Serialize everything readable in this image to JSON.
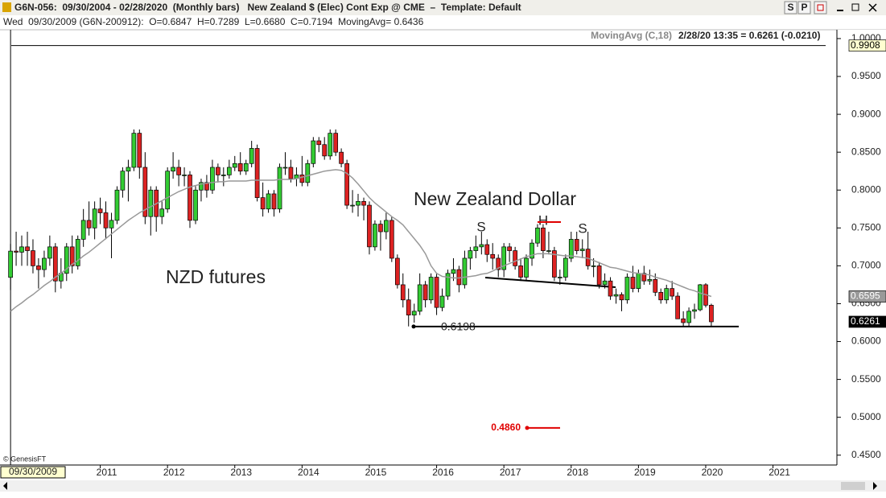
{
  "window": {
    "title": "G6N-056:  09/30/2004 - 02/28/2020  (Monthly bars)   New Zealand $ (Elec) Cont Exp @ CME  –  Template: Default",
    "buttons": [
      "S",
      "P"
    ]
  },
  "info_bar": "Wed  09/30/2009 (G6N-200912):  O=0.6847  H=0.7289  L=0.6680  C=0.7194  MovingAvg= 0.6436",
  "copyright": "© GenesisFT",
  "chart_data": {
    "type": "candlestick",
    "last_quote": "2/28/20 13:35 = 0.6261 (-0.0210)",
    "annotations": [
      "New Zealand Dollar",
      "NZD futures",
      "S",
      "H",
      "S"
    ],
    "support": 0.6198,
    "target": {
      "value": 0.486,
      "label": "0.4860"
    },
    "crosshair": {
      "price": 0.9908,
      "date": "09/30/2009"
    },
    "up_color": "#33cc33",
    "down_color": "#dd2222",
    "grid": false,
    "xlim": [
      2009.51,
      2021.95
    ],
    "xticks": [
      2011,
      2012,
      2013,
      2014,
      2015,
      2016,
      2017,
      2018,
      2019,
      2020,
      2021
    ],
    "ylim": [
      0.437,
      1.001
    ],
    "yticks": [
      {
        "value": 1,
        "label": "1.0000"
      },
      {
        "value": 0.95,
        "label": "0.9500"
      },
      {
        "value": 0.9,
        "label": "0.9000"
      },
      {
        "value": 0.85,
        "label": "0.8500"
      },
      {
        "value": 0.8,
        "label": "0.8000"
      },
      {
        "value": 0.75,
        "label": "0.7500"
      },
      {
        "value": 0.7,
        "label": "0.7000"
      },
      {
        "value": 0.65,
        "label": "0.6500"
      },
      {
        "value": 0.6,
        "label": "0.6000"
      },
      {
        "value": 0.55,
        "label": "0.5500"
      },
      {
        "value": 0.5,
        "label": "0.5000"
      },
      {
        "value": 0.45,
        "label": "0.4500"
      }
    ],
    "x": [
      2009.667,
      2009.75,
      2009.833,
      2009.917,
      2010,
      2010.083,
      2010.167,
      2010.25,
      2010.333,
      2010.417,
      2010.5,
      2010.583,
      2010.667,
      2010.75,
      2010.833,
      2010.917,
      2011,
      2011.083,
      2011.167,
      2011.25,
      2011.333,
      2011.417,
      2011.5,
      2011.583,
      2011.667,
      2011.75,
      2011.833,
      2011.917,
      2012,
      2012.083,
      2012.167,
      2012.25,
      2012.333,
      2012.417,
      2012.5,
      2012.583,
      2012.667,
      2012.75,
      2012.833,
      2012.917,
      2013,
      2013.083,
      2013.167,
      2013.25,
      2013.333,
      2013.417,
      2013.5,
      2013.583,
      2013.667,
      2013.75,
      2013.833,
      2013.917,
      2014,
      2014.083,
      2014.167,
      2014.25,
      2014.333,
      2014.417,
      2014.5,
      2014.583,
      2014.667,
      2014.75,
      2014.833,
      2014.917,
      2015,
      2015.083,
      2015.167,
      2015.25,
      2015.333,
      2015.417,
      2015.5,
      2015.583,
      2015.667,
      2015.75,
      2015.833,
      2015.917,
      2016,
      2016.083,
      2016.167,
      2016.25,
      2016.333,
      2016.417,
      2016.5,
      2016.583,
      2016.667,
      2016.75,
      2016.833,
      2016.917,
      2017,
      2017.083,
      2017.167,
      2017.25,
      2017.333,
      2017.417,
      2017.5,
      2017.583,
      2017.667,
      2017.75,
      2017.833,
      2017.917,
      2018,
      2018.083,
      2018.167,
      2018.25,
      2018.333,
      2018.417,
      2018.5,
      2018.583,
      2018.667,
      2018.75,
      2018.833,
      2018.917,
      2019,
      2019.083,
      2019.167,
      2019.25,
      2019.333,
      2019.417,
      2019.5,
      2019.583,
      2019.667,
      2019.75,
      2019.833,
      2019.917,
      2020,
      2020.083
    ],
    "open": [
      0.6847,
      0.7194,
      0.718,
      0.725,
      0.72,
      0.7,
      0.695,
      0.71,
      0.725,
      0.68,
      0.69,
      0.725,
      0.7,
      0.735,
      0.76,
      0.75,
      0.775,
      0.77,
      0.75,
      0.76,
      0.8,
      0.825,
      0.83,
      0.875,
      0.83,
      0.765,
      0.8,
      0.765,
      0.775,
      0.825,
      0.83,
      0.82,
      0.82,
      0.76,
      0.8,
      0.81,
      0.8,
      0.83,
      0.82,
      0.82,
      0.83,
      0.835,
      0.825,
      0.835,
      0.855,
      0.79,
      0.775,
      0.795,
      0.775,
      0.83,
      0.83,
      0.815,
      0.82,
      0.81,
      0.835,
      0.865,
      0.86,
      0.845,
      0.875,
      0.85,
      0.835,
      0.78,
      0.78,
      0.785,
      0.78,
      0.725,
      0.755,
      0.745,
      0.76,
      0.71,
      0.675,
      0.655,
      0.635,
      0.64,
      0.675,
      0.655,
      0.685,
      0.645,
      0.66,
      0.69,
      0.695,
      0.675,
      0.71,
      0.72,
      0.725,
      0.728,
      0.715,
      0.71,
      0.695,
      0.725,
      0.72,
      0.7,
      0.685,
      0.71,
      0.73,
      0.75,
      0.72,
      0.72,
      0.685,
      0.685,
      0.71,
      0.735,
      0.72,
      0.722,
      0.7,
      0.7,
      0.675,
      0.68,
      0.66,
      0.662,
      0.655,
      0.685,
      0.67,
      0.69,
      0.68,
      0.682,
      0.665,
      0.655,
      0.67,
      0.66,
      0.63,
      0.625,
      0.64,
      0.642,
      0.675,
      0.648
    ],
    "high": [
      0.7289,
      0.745,
      0.74,
      0.745,
      0.735,
      0.71,
      0.72,
      0.74,
      0.73,
      0.71,
      0.73,
      0.74,
      0.74,
      0.775,
      0.785,
      0.785,
      0.79,
      0.785,
      0.77,
      0.805,
      0.83,
      0.84,
      0.88,
      0.88,
      0.85,
      0.805,
      0.805,
      0.785,
      0.83,
      0.85,
      0.84,
      0.83,
      0.825,
      0.805,
      0.815,
      0.82,
      0.84,
      0.835,
      0.83,
      0.84,
      0.845,
      0.85,
      0.84,
      0.865,
      0.86,
      0.81,
      0.8,
      0.8,
      0.835,
      0.85,
      0.84,
      0.83,
      0.845,
      0.84,
      0.87,
      0.87,
      0.87,
      0.88,
      0.88,
      0.855,
      0.84,
      0.8,
      0.795,
      0.79,
      0.785,
      0.76,
      0.76,
      0.77,
      0.765,
      0.715,
      0.69,
      0.67,
      0.65,
      0.69,
      0.68,
      0.69,
      0.69,
      0.67,
      0.695,
      0.71,
      0.7,
      0.72,
      0.725,
      0.74,
      0.745,
      0.735,
      0.73,
      0.715,
      0.73,
      0.73,
      0.725,
      0.71,
      0.715,
      0.735,
      0.755,
      0.755,
      0.745,
      0.725,
      0.695,
      0.715,
      0.745,
      0.745,
      0.735,
      0.745,
      0.71,
      0.705,
      0.69,
      0.685,
      0.67,
      0.665,
      0.69,
      0.7,
      0.695,
      0.7,
      0.695,
      0.69,
      0.67,
      0.675,
      0.68,
      0.665,
      0.64,
      0.645,
      0.65,
      0.676,
      0.677,
      0.65
    ],
    "low": [
      0.668,
      0.7,
      0.7,
      0.7,
      0.69,
      0.67,
      0.685,
      0.7,
      0.665,
      0.67,
      0.68,
      0.69,
      0.695,
      0.725,
      0.74,
      0.735,
      0.755,
      0.735,
      0.71,
      0.755,
      0.79,
      0.785,
      0.825,
      0.815,
      0.755,
      0.74,
      0.745,
      0.755,
      0.77,
      0.815,
      0.805,
      0.805,
      0.75,
      0.755,
      0.785,
      0.79,
      0.795,
      0.81,
      0.805,
      0.815,
      0.825,
      0.82,
      0.82,
      0.83,
      0.785,
      0.765,
      0.77,
      0.765,
      0.77,
      0.82,
      0.81,
      0.805,
      0.805,
      0.805,
      0.83,
      0.85,
      0.84,
      0.84,
      0.845,
      0.83,
      0.775,
      0.77,
      0.765,
      0.76,
      0.715,
      0.72,
      0.72,
      0.735,
      0.705,
      0.67,
      0.645,
      0.62,
      0.625,
      0.635,
      0.645,
      0.65,
      0.635,
      0.64,
      0.655,
      0.68,
      0.665,
      0.67,
      0.695,
      0.71,
      0.715,
      0.705,
      0.695,
      0.685,
      0.685,
      0.705,
      0.695,
      0.68,
      0.68,
      0.7,
      0.725,
      0.71,
      0.715,
      0.68,
      0.675,
      0.68,
      0.705,
      0.715,
      0.71,
      0.695,
      0.685,
      0.67,
      0.67,
      0.655,
      0.65,
      0.64,
      0.65,
      0.665,
      0.665,
      0.675,
      0.675,
      0.66,
      0.65,
      0.65,
      0.655,
      0.63,
      0.62,
      0.62,
      0.63,
      0.64,
      0.645,
      0.62
    ],
    "close": [
      0.7194,
      0.718,
      0.725,
      0.72,
      0.7,
      0.695,
      0.71,
      0.725,
      0.68,
      0.69,
      0.725,
      0.7,
      0.735,
      0.76,
      0.75,
      0.775,
      0.77,
      0.75,
      0.76,
      0.8,
      0.825,
      0.83,
      0.875,
      0.83,
      0.765,
      0.8,
      0.765,
      0.775,
      0.825,
      0.83,
      0.82,
      0.82,
      0.76,
      0.8,
      0.81,
      0.8,
      0.83,
      0.82,
      0.82,
      0.83,
      0.835,
      0.825,
      0.835,
      0.855,
      0.79,
      0.775,
      0.795,
      0.775,
      0.83,
      0.83,
      0.815,
      0.82,
      0.81,
      0.835,
      0.865,
      0.86,
      0.845,
      0.875,
      0.85,
      0.835,
      0.78,
      0.78,
      0.785,
      0.78,
      0.725,
      0.755,
      0.745,
      0.76,
      0.71,
      0.675,
      0.655,
      0.635,
      0.64,
      0.675,
      0.655,
      0.685,
      0.645,
      0.66,
      0.69,
      0.695,
      0.675,
      0.71,
      0.72,
      0.725,
      0.728,
      0.715,
      0.71,
      0.695,
      0.725,
      0.72,
      0.7,
      0.685,
      0.71,
      0.73,
      0.75,
      0.72,
      0.72,
      0.685,
      0.685,
      0.71,
      0.735,
      0.72,
      0.722,
      0.7,
      0.7,
      0.675,
      0.68,
      0.66,
      0.662,
      0.655,
      0.685,
      0.67,
      0.69,
      0.68,
      0.682,
      0.665,
      0.655,
      0.67,
      0.66,
      0.63,
      0.625,
      0.64,
      0.642,
      0.675,
      0.648,
      0.6261
    ],
    "moving_average": {
      "name": "MovingAvg (C,18)",
      "color": "#999999",
      "values": [
        0.64,
        0.646,
        0.651,
        0.657,
        0.662,
        0.668,
        0.674,
        0.679,
        0.685,
        0.69,
        0.696,
        0.702,
        0.707,
        0.713,
        0.718,
        0.724,
        0.73,
        0.736,
        0.742,
        0.748,
        0.754,
        0.76,
        0.765,
        0.77,
        0.774,
        0.778,
        0.782,
        0.786,
        0.79,
        0.794,
        0.798,
        0.801,
        0.804,
        0.806,
        0.808,
        0.809,
        0.81,
        0.811,
        0.811,
        0.812,
        0.812,
        0.812,
        0.812,
        0.813,
        0.813,
        0.813,
        0.813,
        0.813,
        0.814,
        0.814,
        0.814,
        0.815,
        0.817,
        0.819,
        0.821,
        0.823,
        0.825,
        0.826,
        0.827,
        0.826,
        0.822,
        0.816,
        0.808,
        0.799,
        0.79,
        0.783,
        0.777,
        0.771,
        0.765,
        0.76,
        0.754,
        0.745,
        0.736,
        0.727,
        0.716,
        0.7,
        0.69,
        0.686,
        0.685,
        0.684,
        0.684,
        0.685,
        0.686,
        0.687,
        0.689,
        0.69,
        0.693,
        0.697,
        0.7,
        0.703,
        0.706,
        0.709,
        0.712,
        0.714,
        0.716,
        0.716,
        0.716,
        0.715,
        0.714,
        0.713,
        0.713,
        0.712,
        0.711,
        0.71,
        0.707,
        0.704,
        0.701,
        0.698,
        0.697,
        0.695,
        0.693,
        0.691,
        0.69,
        0.689,
        0.688,
        0.685,
        0.683,
        0.681,
        0.678,
        0.675,
        0.672,
        0.669,
        0.667,
        0.664,
        0.662,
        0.6595
      ]
    }
  }
}
